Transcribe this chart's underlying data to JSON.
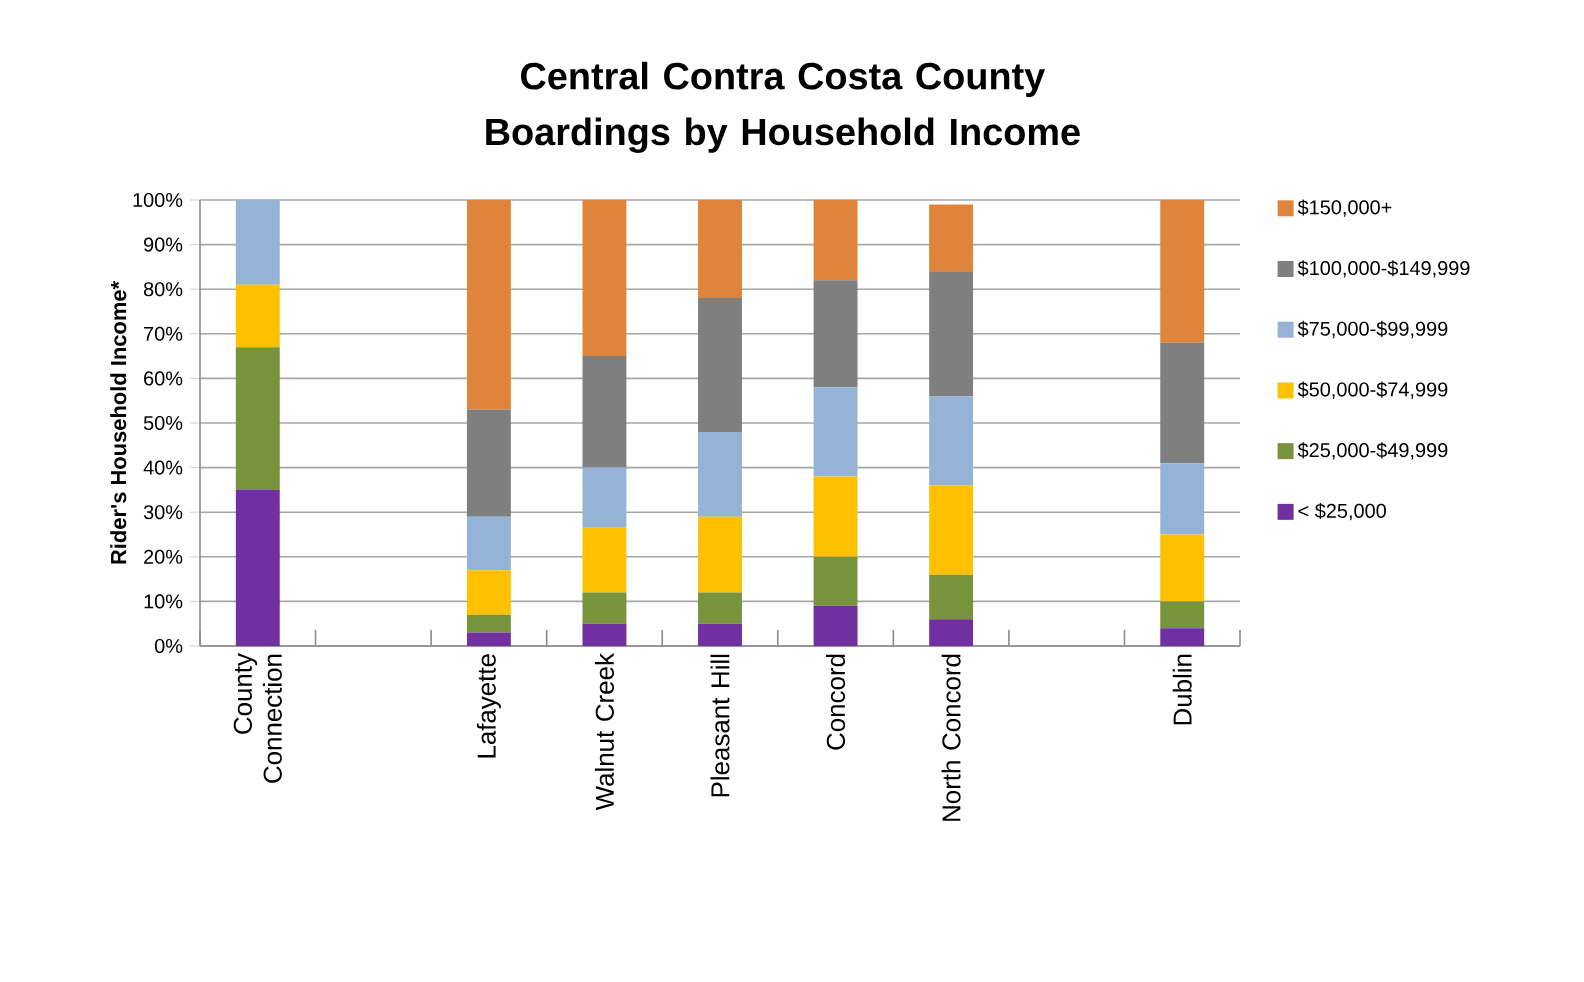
{
  "chart_data": {
    "type": "bar",
    "stacked": true,
    "title": "Central Contra Costa County Boardings by Household Income",
    "ylabel": "Rider's Household Income*",
    "categories": [
      "County Connection",
      null,
      "Lafayette",
      "Walnut Creek",
      "Pleasant Hill",
      "Concord",
      "North Concord",
      null,
      "Dublin"
    ],
    "series": [
      {
        "name": "< $25,000",
        "color": "#7030a0",
        "values": [
          35,
          null,
          3,
          5,
          5,
          9,
          6,
          null,
          4
        ]
      },
      {
        "name": "$25,000-$49,999",
        "color": "#77933c",
        "values": [
          32,
          null,
          4,
          7,
          7,
          11,
          10,
          null,
          6
        ]
      },
      {
        "name": "$50,000-$74,999",
        "color": "#ffc000",
        "values": [
          14,
          null,
          10,
          14.5,
          17,
          18,
          20,
          null,
          15
        ]
      },
      {
        "name": "$75,000-$99,999",
        "color": "#95b3d7",
        "values": [
          19,
          null,
          12,
          13.5,
          19,
          20,
          20,
          null,
          16
        ]
      },
      {
        "name": "$100,000-$149,999",
        "color": "#7f7f7f",
        "values": [
          0,
          null,
          24,
          25,
          30,
          24,
          28,
          null,
          27
        ]
      },
      {
        "name": "$150,000+",
        "color": "#e0843c",
        "values": [
          0,
          null,
          47,
          35,
          22,
          18,
          15,
          null,
          32
        ]
      }
    ],
    "ylim": [
      0,
      100
    ],
    "yticks": [
      {
        "value": 0,
        "label": "0%"
      },
      {
        "value": 10,
        "label": "10%"
      },
      {
        "value": 20,
        "label": "20%"
      },
      {
        "value": 30,
        "label": "30%"
      },
      {
        "value": 40,
        "label": "40%"
      },
      {
        "value": 50,
        "label": "50%"
      },
      {
        "value": 60,
        "label": "60%"
      },
      {
        "value": 70,
        "label": "70%"
      },
      {
        "value": 80,
        "label": "80%"
      },
      {
        "value": 90,
        "label": "90%"
      },
      {
        "value": 100,
        "label": "100%"
      }
    ],
    "grid": "y",
    "legend": "right"
  }
}
